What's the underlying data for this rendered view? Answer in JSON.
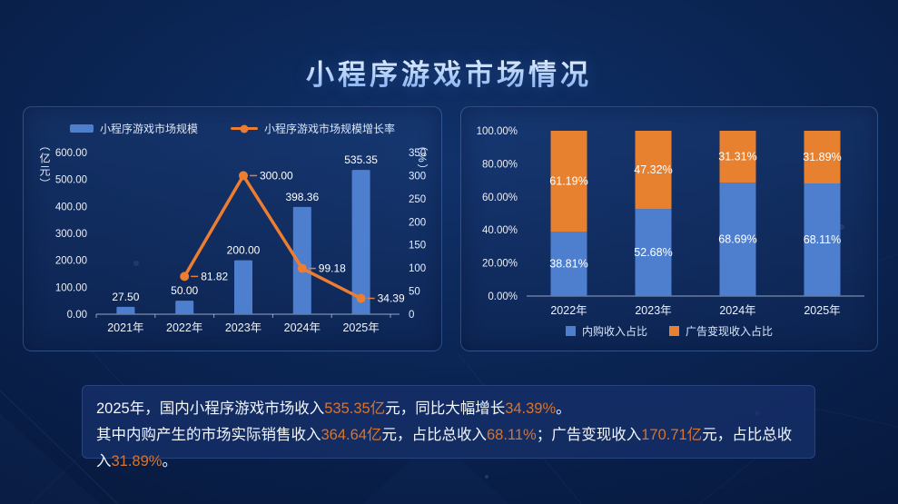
{
  "title": "小程序游戏市场情况",
  "colors": {
    "bar_blue": "#4e7fce",
    "line_orange": "#ed7d31",
    "stack_orange": "#e8812f",
    "axis": "#c2cfe6",
    "highlight": "#d9742e"
  },
  "chart_data": [
    {
      "type": "bar",
      "subtype": "bar+line dual axis",
      "categories": [
        "2021年",
        "2022年",
        "2023年",
        "2024年",
        "2025年"
      ],
      "series": [
        {
          "name": "小程序游戏市场规模",
          "type": "bar",
          "axis": "left",
          "values": [
            27.5,
            50.0,
            200.0,
            398.36,
            535.35
          ],
          "labels": [
            "27.50",
            "50.00",
            "200.00",
            "398.36",
            "535.35"
          ]
        },
        {
          "name": "小程序游戏市场规模增长率",
          "type": "line",
          "axis": "right",
          "values": [
            null,
            81.82,
            300.0,
            99.18,
            34.39
          ],
          "labels": [
            null,
            "81.82",
            "300.00",
            "99.18",
            "34.39"
          ]
        }
      ],
      "left_axis": {
        "label": "（亿元）",
        "min": 0,
        "max": 600,
        "ticks": [
          "0.00",
          "100.00",
          "200.00",
          "300.00",
          "400.00",
          "500.00",
          "600.00"
        ]
      },
      "right_axis": {
        "label": "（%）",
        "min": 0,
        "max": 350,
        "ticks": [
          "0",
          "50",
          "100",
          "150",
          "200",
          "250",
          "300",
          "350"
        ]
      },
      "legend_position": "top",
      "grid": "off"
    },
    {
      "type": "bar",
      "subtype": "stacked percentage",
      "categories": [
        "2022年",
        "2023年",
        "2024年",
        "2025年"
      ],
      "series": [
        {
          "name": "内购收入占比",
          "values": [
            38.81,
            52.68,
            68.69,
            68.11
          ],
          "labels": [
            "38.81%",
            "52.68%",
            "68.69%",
            "68.11%"
          ]
        },
        {
          "name": "广告变现收入占比",
          "values": [
            61.19,
            47.32,
            31.31,
            31.89
          ],
          "labels": [
            "61.19%",
            "47.32%",
            "31.31%",
            "31.89%"
          ]
        }
      ],
      "y_axis": {
        "min": 0,
        "max": 100,
        "ticks": [
          "0.00%",
          "20.00%",
          "40.00%",
          "60.00%",
          "80.00%",
          "100.00%"
        ]
      },
      "legend_position": "bottom",
      "grid": "off"
    }
  ],
  "summary": {
    "line1": [
      {
        "text": "2025年，国内小程序游戏市场收入"
      },
      {
        "text": "535.35亿",
        "hl": true
      },
      {
        "text": "元，同比大幅增长"
      },
      {
        "text": "34.39%",
        "hl": true
      },
      {
        "text": "。"
      }
    ],
    "line2": [
      {
        "text": "其中内购产生的市场实际销售收入"
      },
      {
        "text": "364.64亿",
        "hl": true
      },
      {
        "text": "元，占比总收入"
      },
      {
        "text": "68.11%",
        "hl": true
      },
      {
        "text": "；广告变现收入"
      },
      {
        "text": "170.71亿",
        "hl": true
      },
      {
        "text": "元，占比总收入"
      },
      {
        "text": "31.89%",
        "hl": true
      },
      {
        "text": "。"
      }
    ]
  }
}
